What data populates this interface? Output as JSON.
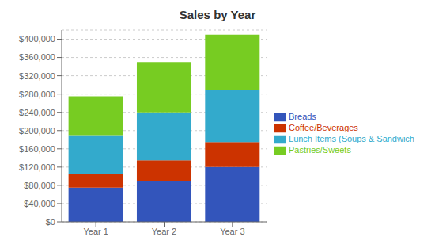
{
  "chart_data": {
    "type": "bar",
    "title": "Sales by Year",
    "categories": [
      "Year 1",
      "Year 2",
      "Year 3"
    ],
    "series": [
      {
        "name": "Breads",
        "color": "#3355BB",
        "values": [
          75000,
          90000,
          120000
        ]
      },
      {
        "name": "Coffee/Beverages",
        "color": "#CC3300",
        "values": [
          30000,
          45000,
          55000
        ]
      },
      {
        "name": "Lunch Items (Soups & Sandwich",
        "color": "#33AACC",
        "values": [
          85000,
          105000,
          115000
        ]
      },
      {
        "name": "Pastries/Sweets",
        "color": "#77CC22",
        "values": [
          85000,
          110000,
          120000
        ]
      }
    ],
    "stacked": true,
    "ylim": [
      0,
      420000
    ],
    "yticks": [
      {
        "value": 0,
        "label": "$0"
      },
      {
        "value": 40000,
        "label": "$40,000"
      },
      {
        "value": 80000,
        "label": "$80,000"
      },
      {
        "value": 120000,
        "label": "$120,000"
      },
      {
        "value": 160000,
        "label": "$160,000"
      },
      {
        "value": 200000,
        "label": "$200,000"
      },
      {
        "value": 240000,
        "label": "$240,000"
      },
      {
        "value": 280000,
        "label": "$280,000"
      },
      {
        "value": 320000,
        "label": "$320,000"
      },
      {
        "value": 360000,
        "label": "$360,000"
      },
      {
        "value": 400000,
        "label": "$400,000"
      }
    ],
    "grid": true,
    "legend": "right"
  }
}
